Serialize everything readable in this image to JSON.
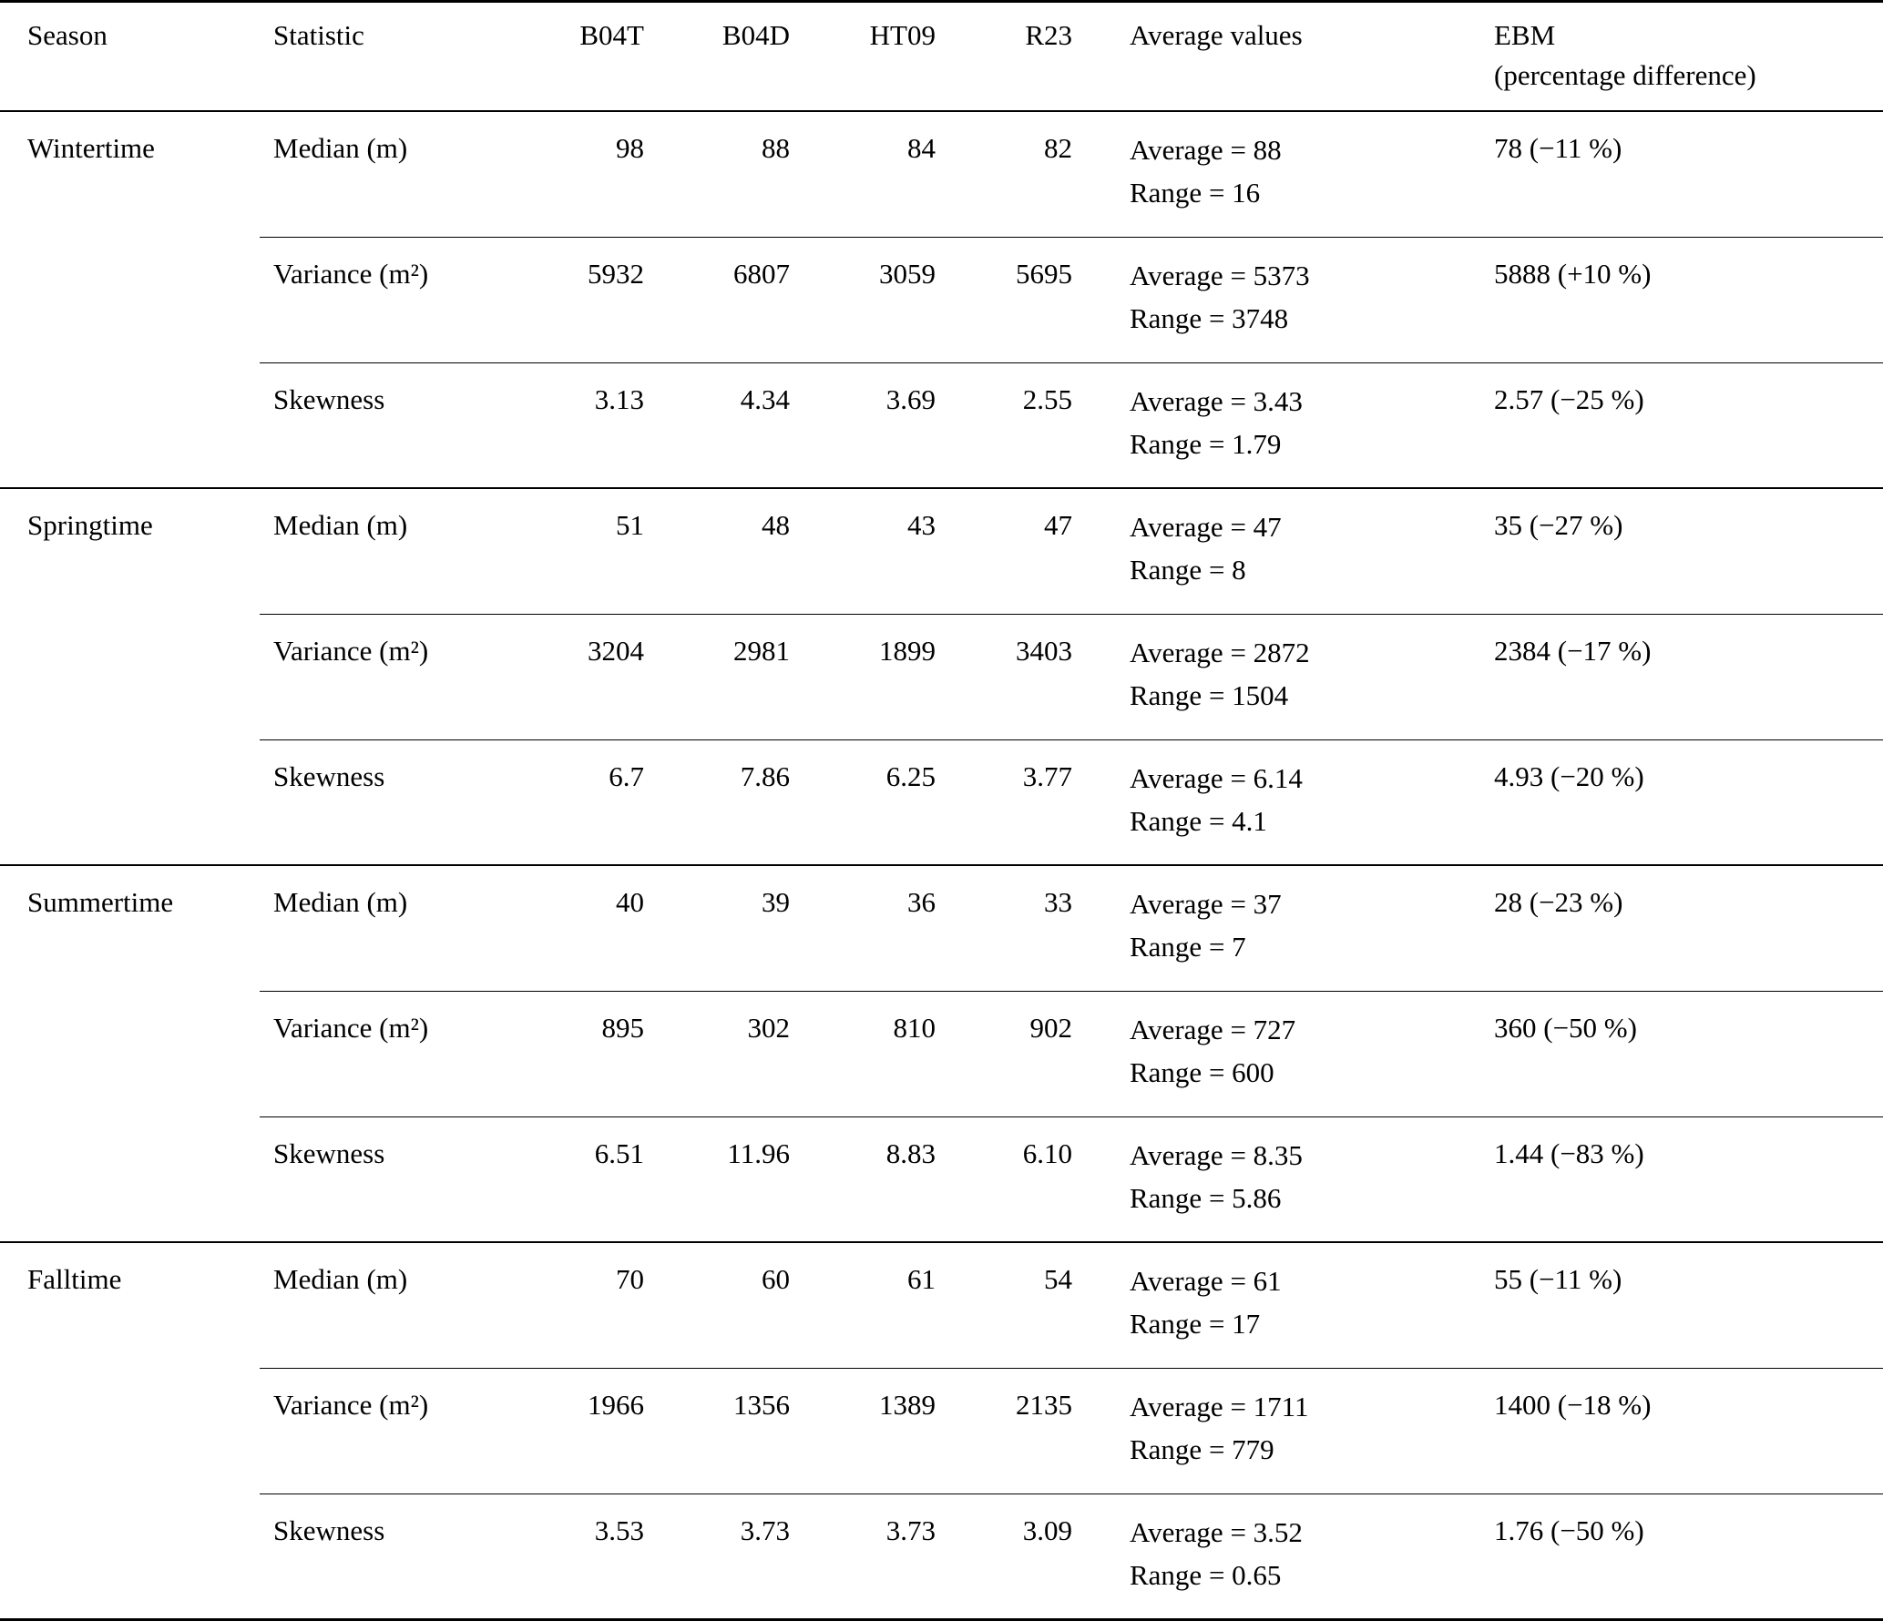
{
  "table": {
    "headers": {
      "season": "Season",
      "statistic": "Statistic",
      "b04t": "B04T",
      "b04d": "B04D",
      "ht09": "HT09",
      "r23": "R23",
      "average_values": "Average values",
      "ebm": "EBM\n(percentage difference)"
    },
    "seasons": [
      {
        "name": "Wintertime",
        "rows": [
          {
            "statistic": "Median (m)",
            "values": [
              "98",
              "88",
              "84",
              "82"
            ],
            "average": "Average = 88",
            "range": "Range = 16",
            "ebm": "78 (−11 %)"
          },
          {
            "statistic": "Variance (m²)",
            "values": [
              "5932",
              "6807",
              "3059",
              "5695"
            ],
            "average": "Average = 5373",
            "range": "Range = 3748",
            "ebm": "5888 (+10 %)"
          },
          {
            "statistic": "Skewness",
            "values": [
              "3.13",
              "4.34",
              "3.69",
              "2.55"
            ],
            "average": "Average = 3.43",
            "range": "Range = 1.79",
            "ebm": "2.57 (−25 %)"
          }
        ]
      },
      {
        "name": "Springtime",
        "rows": [
          {
            "statistic": "Median (m)",
            "values": [
              "51",
              "48",
              "43",
              "47"
            ],
            "average": "Average = 47",
            "range": "Range = 8",
            "ebm": "35 (−27 %)"
          },
          {
            "statistic": "Variance (m²)",
            "values": [
              "3204",
              "2981",
              "1899",
              "3403"
            ],
            "average": "Average = 2872",
            "range": "Range = 1504",
            "ebm": "2384 (−17 %)"
          },
          {
            "statistic": "Skewness",
            "values": [
              "6.7",
              "7.86",
              "6.25",
              "3.77"
            ],
            "average": "Average = 6.14",
            "range": "Range = 4.1",
            "ebm": "4.93 (−20 %)"
          }
        ]
      },
      {
        "name": "Summertime",
        "rows": [
          {
            "statistic": "Median (m)",
            "values": [
              "40",
              "39",
              "36",
              "33"
            ],
            "average": "Average = 37",
            "range": "Range = 7",
            "ebm": "28 (−23 %)"
          },
          {
            "statistic": "Variance (m²)",
            "values": [
              "895",
              "302",
              "810",
              "902"
            ],
            "average": "Average = 727",
            "range": "Range = 600",
            "ebm": "360 (−50 %)"
          },
          {
            "statistic": "Skewness",
            "values": [
              "6.51",
              "11.96",
              "8.83",
              "6.10"
            ],
            "average": "Average = 8.35",
            "range": "Range = 5.86",
            "ebm": "1.44 (−83 %)"
          }
        ]
      },
      {
        "name": "Falltime",
        "rows": [
          {
            "statistic": "Median (m)",
            "values": [
              "70",
              "60",
              "61",
              "54"
            ],
            "average": "Average = 61",
            "range": "Range = 17",
            "ebm": "55 (−11 %)"
          },
          {
            "statistic": "Variance (m²)",
            "values": [
              "1966",
              "1356",
              "1389",
              "2135"
            ],
            "average": "Average = 1711",
            "range": "Range = 779",
            "ebm": "1400 (−18 %)"
          },
          {
            "statistic": "Skewness",
            "values": [
              "3.53",
              "3.73",
              "3.73",
              "3.09"
            ],
            "average": "Average = 3.52",
            "range": "Range = 0.65",
            "ebm": "1.76 (−50 %)"
          }
        ]
      }
    ]
  }
}
